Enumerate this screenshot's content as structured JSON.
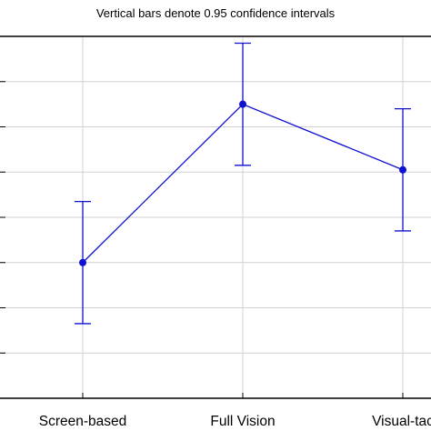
{
  "chart_data": {
    "type": "line",
    "title": "",
    "subtitle": "Vertical bars denote 0.95 confidence intervals",
    "xlabel": "",
    "ylabel": "",
    "categories": [
      "Screen-based",
      "Full Vision",
      "Visual-tac"
    ],
    "series": [
      {
        "values": [
          0.2,
          0.55,
          0.405
        ],
        "ci_lower": [
          0.065,
          0.415,
          0.27
        ],
        "ci_upper": [
          0.335,
          0.685,
          0.54
        ],
        "color": "#1010d0"
      }
    ],
    "ylim": [
      -0.1,
      0.7
    ],
    "yticks": [
      0.0,
      0.1,
      0.2,
      0.3,
      0.4,
      0.5,
      0.6
    ],
    "grid": true,
    "legend": "none",
    "colors": {
      "series": "#1010d0",
      "grid": "#d0d0d0",
      "frame": "#000000"
    }
  }
}
